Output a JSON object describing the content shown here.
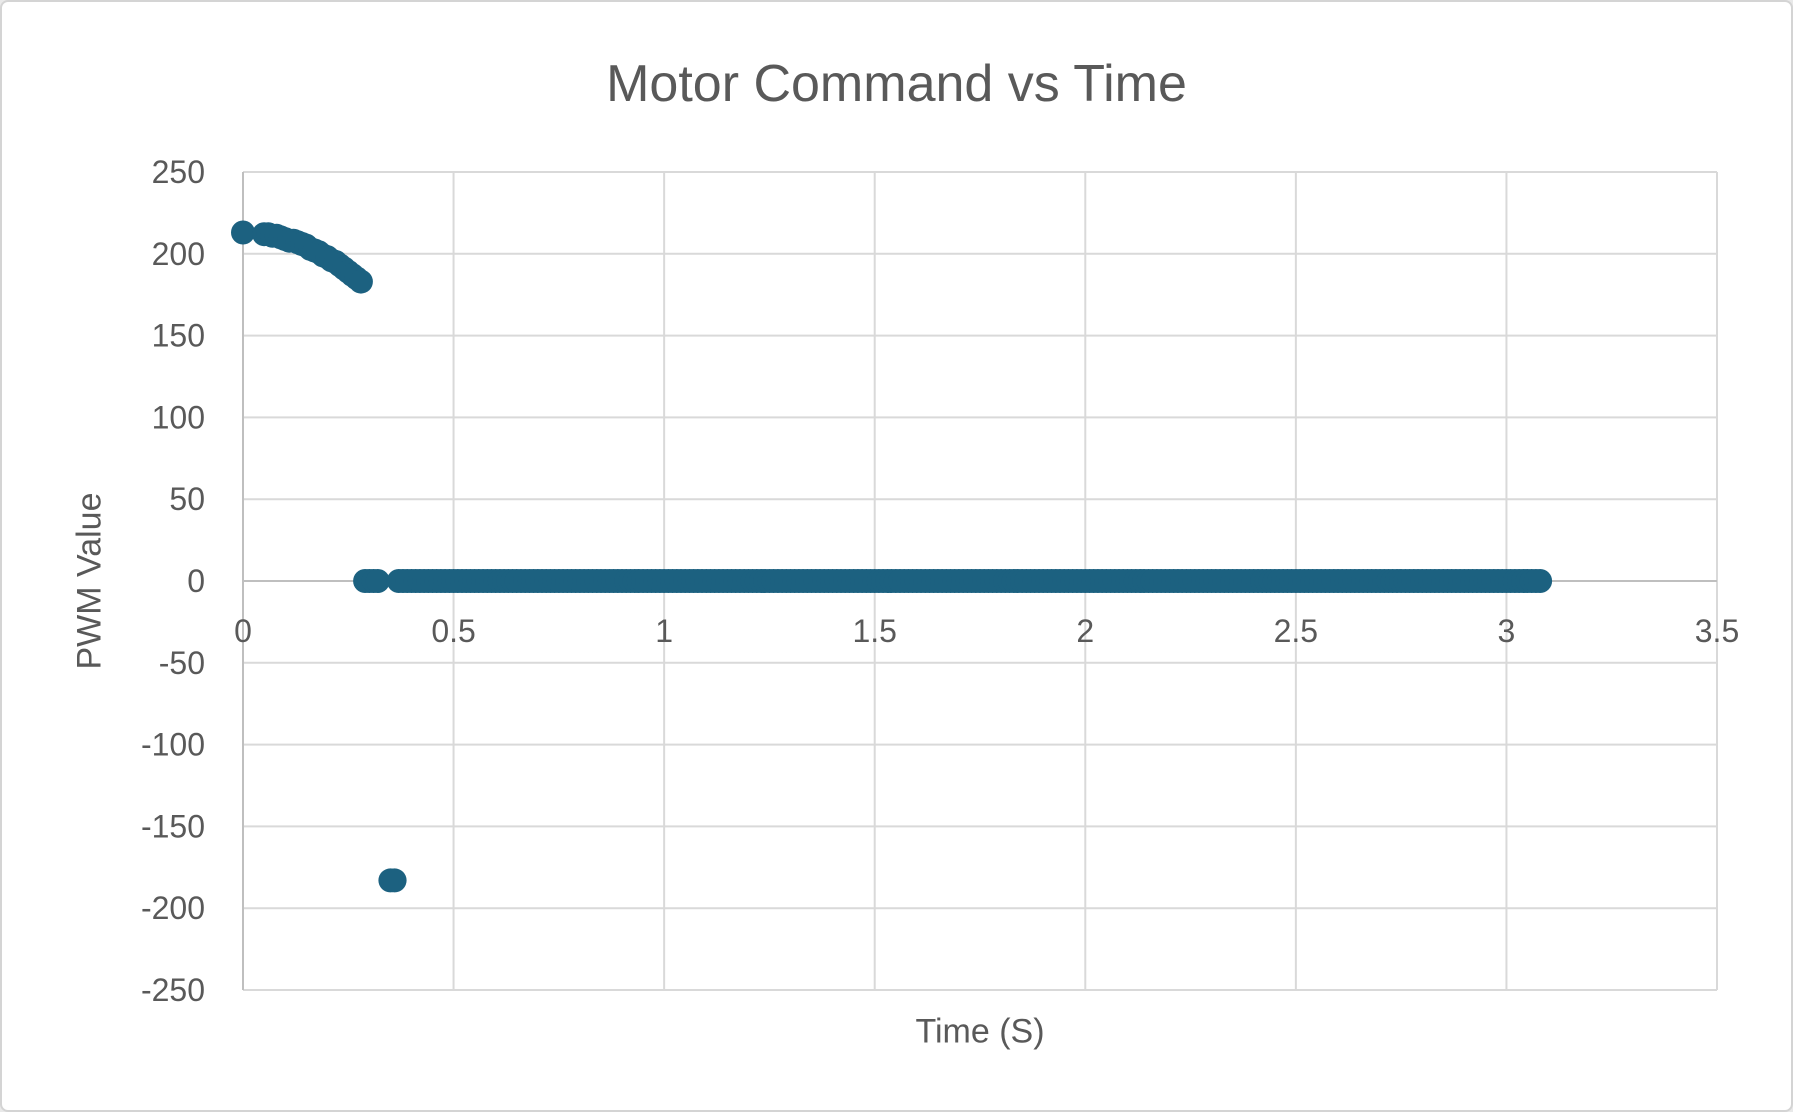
{
  "chart_data": {
    "type": "scatter",
    "title": "Motor Command vs Time",
    "xlabel": "Time (S)",
    "ylabel": "PWM Value",
    "xlim": [
      0,
      3.5
    ],
    "ylim": [
      -250,
      250
    ],
    "x_ticks": [
      0,
      0.5,
      1,
      1.5,
      2,
      2.5,
      3,
      3.5
    ],
    "x_tick_labels": [
      "0",
      "0.5",
      "1",
      "1.5",
      "2",
      "2.5",
      "3",
      "3.5"
    ],
    "y_ticks": [
      250,
      200,
      150,
      100,
      50,
      0,
      -50,
      -100,
      -150,
      -200,
      -250
    ],
    "y_tick_labels": [
      "250",
      "200",
      "150",
      "100",
      "50",
      "0",
      "-50",
      "-100",
      "-150",
      "-200",
      "-250"
    ],
    "grid": true,
    "legend": false,
    "series": [
      {
        "name": "Motor Command",
        "points": [
          [
            0,
            213
          ],
          [
            0.05,
            212
          ],
          [
            0.06,
            212
          ],
          [
            0.07,
            211
          ],
          [
            0.08,
            211
          ],
          [
            0.09,
            210
          ],
          [
            0.1,
            209
          ],
          [
            0.11,
            208
          ],
          [
            0.12,
            208
          ],
          [
            0.13,
            207
          ],
          [
            0.14,
            206
          ],
          [
            0.15,
            205
          ],
          [
            0.16,
            203
          ],
          [
            0.17,
            202
          ],
          [
            0.18,
            201
          ],
          [
            0.19,
            199
          ],
          [
            0.2,
            198
          ],
          [
            0.21,
            196
          ],
          [
            0.22,
            195
          ],
          [
            0.23,
            193
          ],
          [
            0.24,
            191
          ],
          [
            0.25,
            189
          ],
          [
            0.26,
            187
          ],
          [
            0.27,
            185
          ],
          [
            0.28,
            183
          ]
        ],
        "constant_segments": [
          {
            "t_start": 0.29,
            "t_end": 0.32,
            "step": 0.01,
            "value": 0
          },
          {
            "t_start": 0.35,
            "t_end": 0.36,
            "step": 0.01,
            "value": -183
          },
          {
            "t_start": 0.37,
            "t_end": 3.08,
            "step": 0.01,
            "value": 0
          }
        ]
      }
    ]
  },
  "colors": {
    "marker": "#1C6180",
    "gridline": "#D9D9D9",
    "axis_line": "#BFBFBF",
    "text": "#595959",
    "background": "#FFFFFF"
  }
}
